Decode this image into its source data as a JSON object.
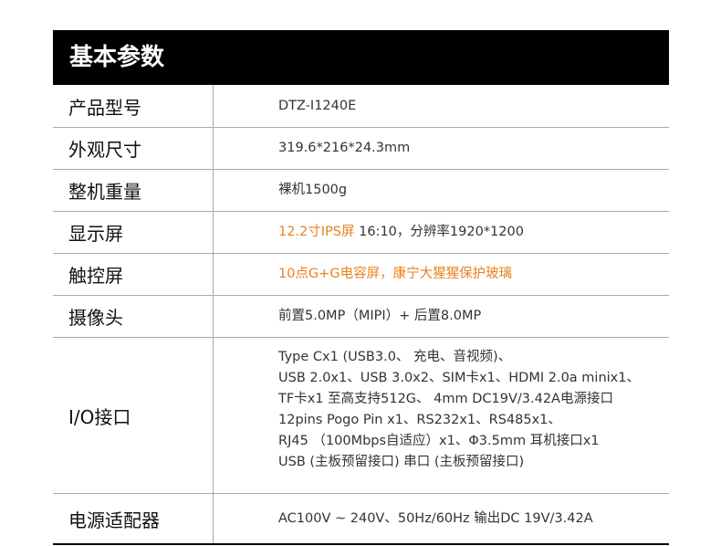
{
  "title": "基本参数",
  "accent": "#e8801e",
  "rows": [
    {
      "label": "产品型号",
      "value": "DTZ-I1240E"
    },
    {
      "label": "外观尺寸",
      "value": "319.6*216*24.3mm"
    },
    {
      "label": "整机重量",
      "value": "裸机1500g"
    },
    {
      "label": "显示屏",
      "highlight": "12.2寸IPS屏",
      "value": " 16:10，分辨率1920*1200"
    },
    {
      "label": "触控屏",
      "highlight": "10点G+G电容屏，康宁大猩猩保护玻璃"
    },
    {
      "label": "摄像头",
      "value": "前置5.0MP（MIPI）+ 后置8.0MP"
    },
    {
      "label": "I/O接口",
      "lines": [
        "Type Cx1 (USB3.0、 充电、音视频)、",
        "USB 2.0x1、USB 3.0x2、SIM卡x1、HDMI 2.0a minix1、",
        "TF卡x1 至高支持512G、 4mm DC19V/3.42A电源接口",
        "12pins Pogo Pin x1、RS232x1、RS485x1、",
        "RJ45 （100Mbps自适应）x1、Φ3.5mm 耳机接口x1",
        "USB (主板预留接口) 串口 (主板预留接口)"
      ]
    },
    {
      "label": "电源适配器",
      "value": "AC100V ~ 240V、50Hz/60Hz 输出DC 19V/3.42A"
    }
  ]
}
